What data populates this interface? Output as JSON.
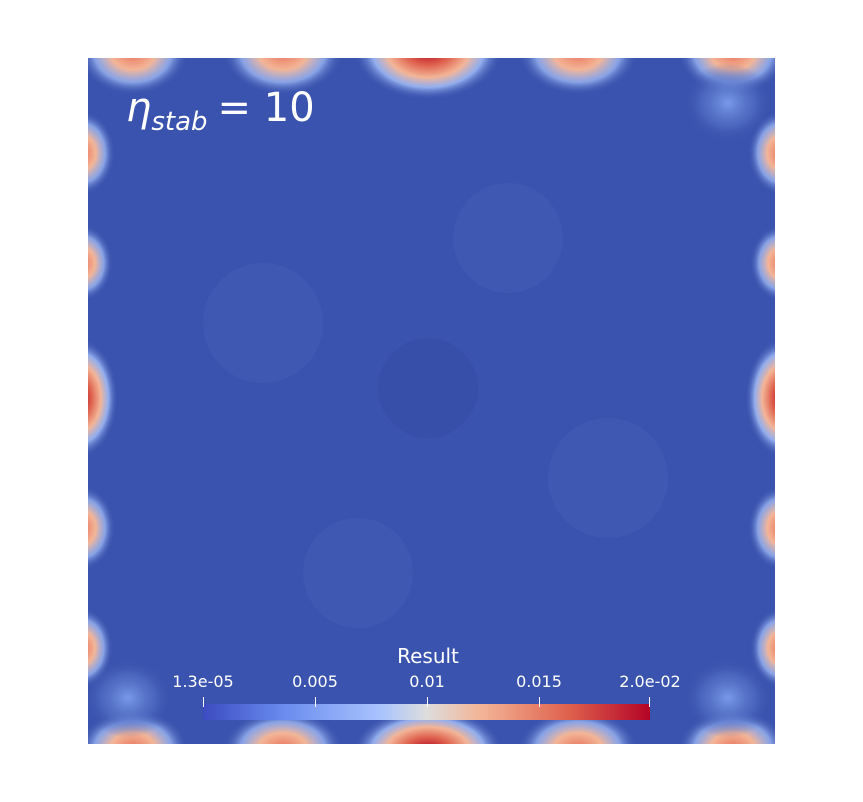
{
  "annotation": {
    "symbol": "η",
    "subscript": "stab",
    "rest": "= 10"
  },
  "scalar_bar": {
    "title": "Result",
    "ticks": [
      {
        "label": "1.3e-05",
        "value": 1.3e-05
      },
      {
        "label": "0.005",
        "value": 0.005
      },
      {
        "label": "0.01",
        "value": 0.01
      },
      {
        "label": "0.015",
        "value": 0.015
      },
      {
        "label": "2.0e-02",
        "value": 0.02
      }
    ],
    "range": [
      1.3e-05,
      0.02
    ],
    "colormap": "cool-to-warm",
    "colors": {
      "low": "#3b4cc0",
      "mid": "#dddddd",
      "high": "#b40426",
      "field_interior": "#3a53ae"
    }
  }
}
